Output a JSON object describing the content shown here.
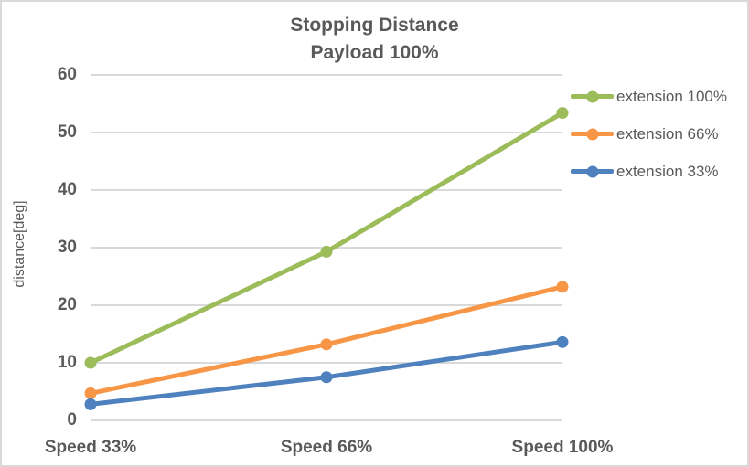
{
  "chart_data": {
    "type": "line",
    "title": "Stopping Distance",
    "subtitle": "Payload 100%",
    "xlabel": "",
    "ylabel": "distance[deg]",
    "categories": [
      "Speed 33%",
      "Speed 66%",
      "Speed 100%"
    ],
    "series": [
      {
        "name": "extension 100%",
        "color": "#9CBB59",
        "values": [
          10.0,
          29.3,
          53.4
        ]
      },
      {
        "name": "extension 66%",
        "color": "#F79646",
        "values": [
          4.7,
          13.2,
          23.2
        ]
      },
      {
        "name": "extension 33%",
        "color": "#4E81BD",
        "values": [
          2.8,
          7.5,
          13.6
        ]
      }
    ],
    "ylim": [
      0,
      60
    ],
    "yticks": [
      0,
      10,
      20,
      30,
      40,
      50,
      60
    ],
    "grid": true,
    "grid_color": "#D9D9D9",
    "text_color": "#595959",
    "legend_position": "right",
    "marker": "circle"
  }
}
